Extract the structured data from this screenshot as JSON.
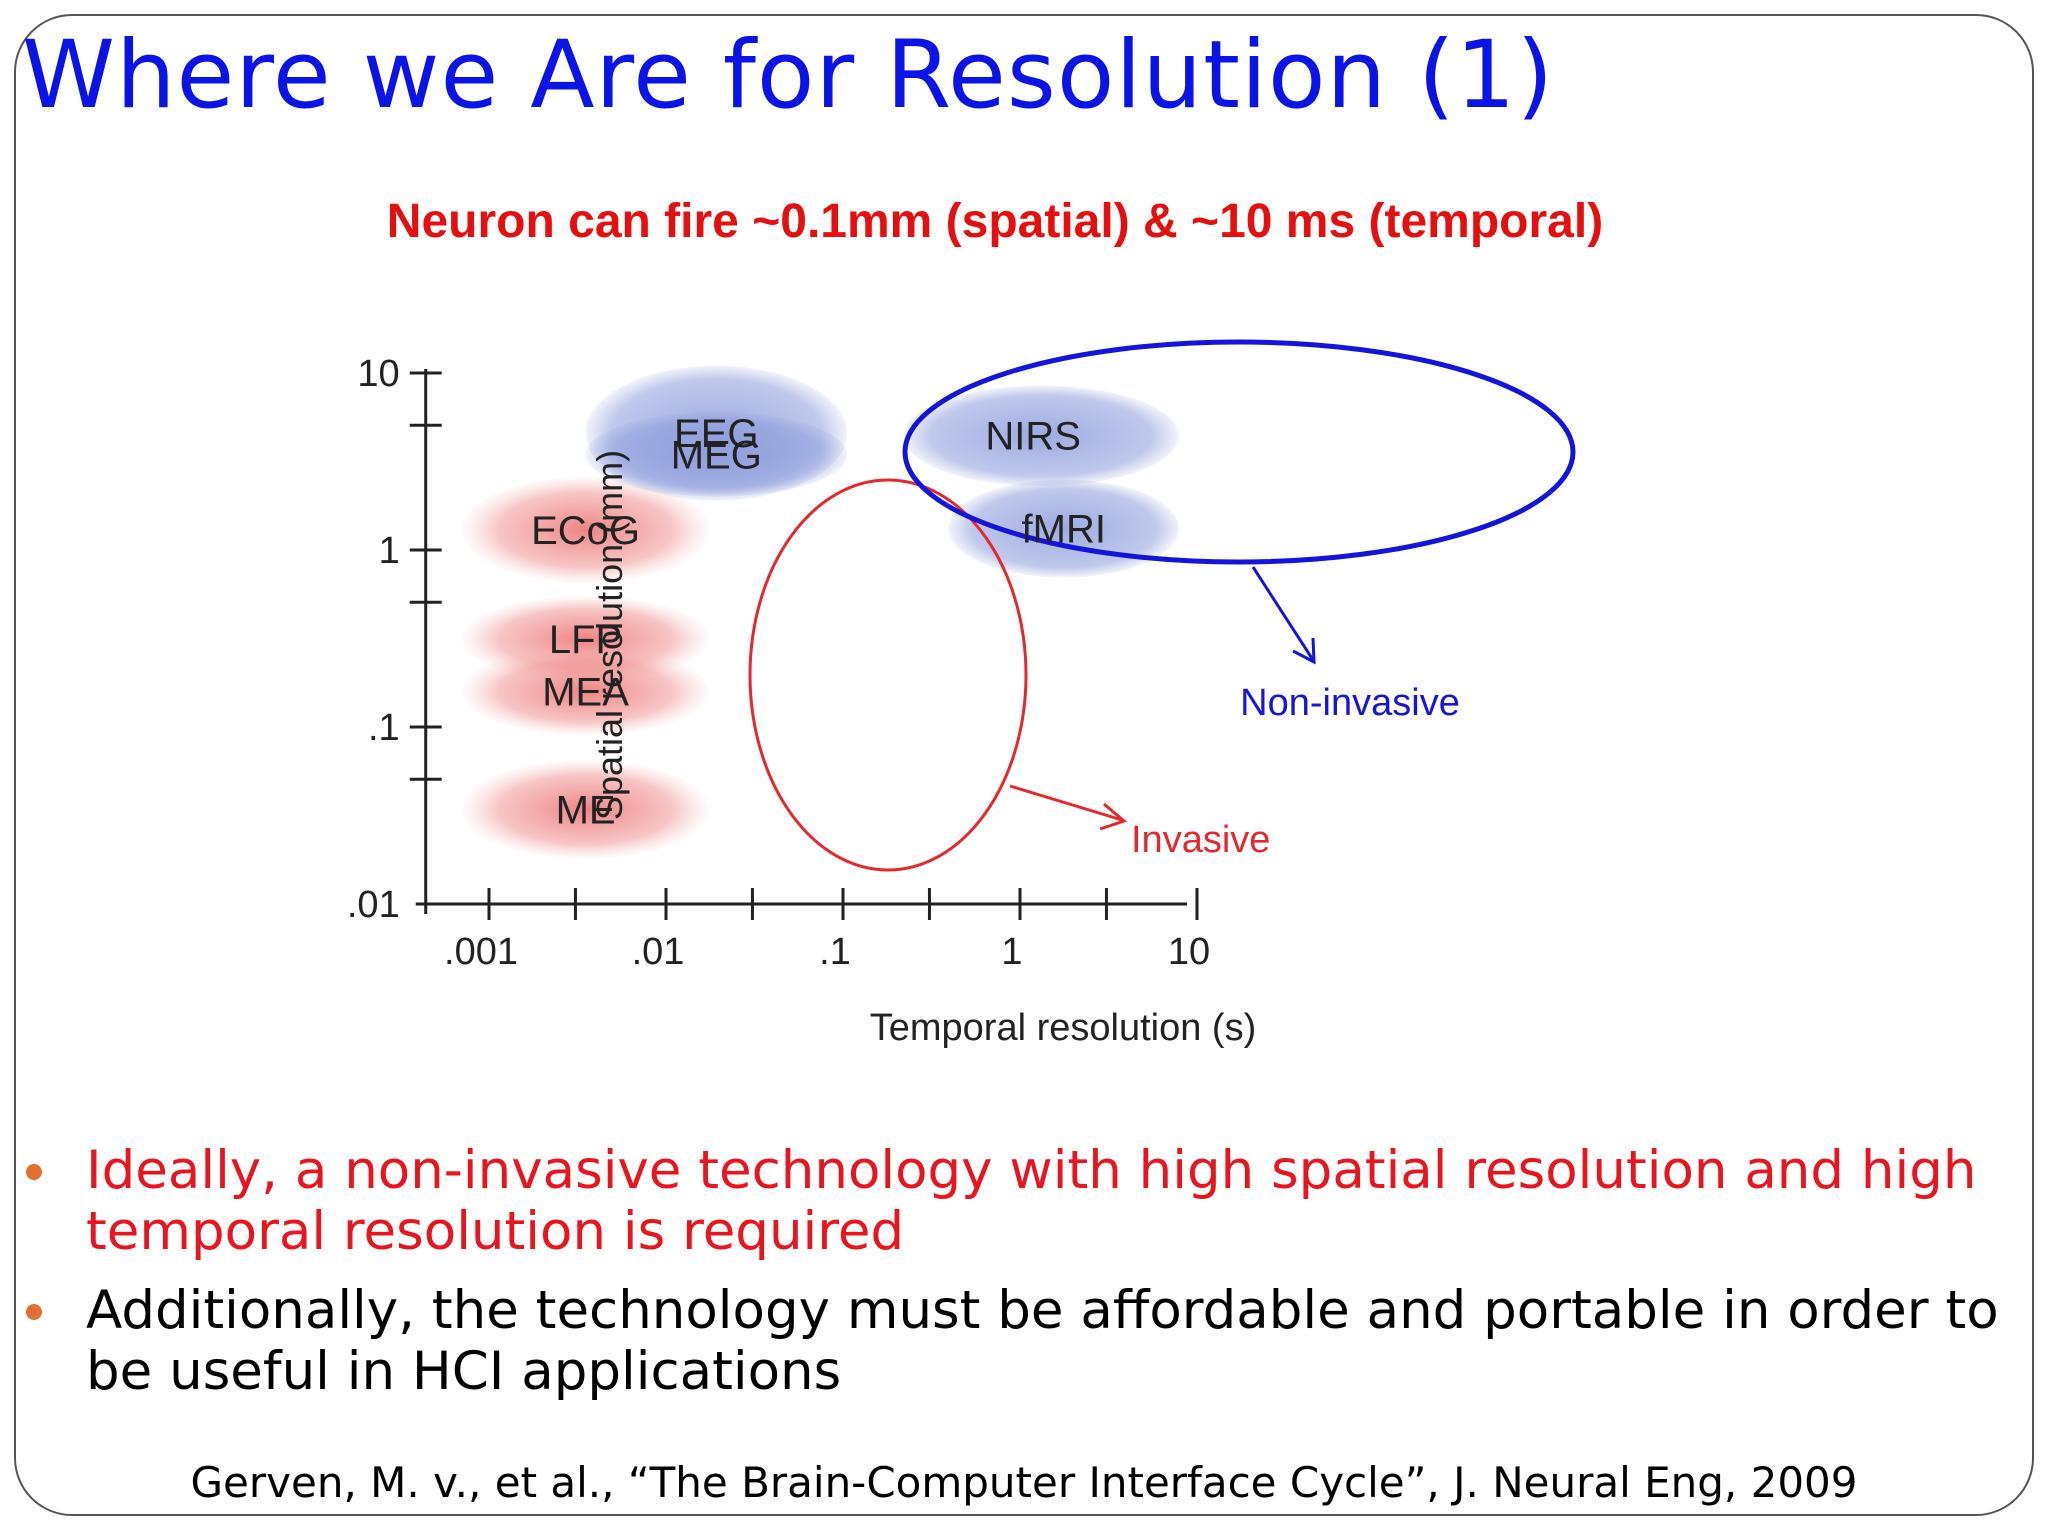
{
  "slide": {
    "title": "Where we Are for Resolution (1)",
    "subtitle": "Neuron can fire ~0.1mm (spatial) & ~10 ms (temporal)",
    "citation": "Gerven, M. v., et al., “The Brain-Computer Interface Cycle”, J. Neural Eng, 2009"
  },
  "bullets": [
    {
      "text": "Ideally, a non-invasive technology with high spatial resolution and high temporal resolution is required",
      "color": "#e8141e"
    },
    {
      "text": "Additionally, the technology must be affordable and portable in order to be useful in HCI applications",
      "color": "#000000"
    }
  ],
  "colors": {
    "title": "#0a14e6",
    "subtitle": "#e60f0f",
    "bullet_marker": "#e07034",
    "invasive": "#e6282d",
    "non_invasive": "#1414dc",
    "blob_blue": "#8c9cdc",
    "blob_red": "#eb6e6e"
  },
  "chart_data": {
    "type": "diagram",
    "xlabel": "Temporal resolution (s)",
    "ylabel": "Spatial resolution (mm)",
    "x_scale": "log",
    "y_scale": "log",
    "x_ticks": [
      ".001",
      ".01",
      ".1",
      "1",
      "10"
    ],
    "y_ticks": [
      "10",
      "1",
      ".1",
      ".01"
    ],
    "xlim": [
      0.0005,
      10
    ],
    "ylim": [
      0.01,
      10
    ],
    "regions": [
      {
        "label": "EEG",
        "group": "non-invasive",
        "x_range": [
          0.004,
          0.12
        ],
        "y_range": [
          1.9,
          11
        ]
      },
      {
        "label": "MEG",
        "group": "non-invasive",
        "x_range": [
          0.004,
          0.12
        ],
        "y_range": [
          2.0,
          6.0
        ]
      },
      {
        "label": "NIRS",
        "group": "non-invasive",
        "x_range": [
          0.25,
          9
        ],
        "y_range": [
          2.3,
          8.5
        ]
      },
      {
        "label": "fMRI",
        "group": "non-invasive",
        "x_range": [
          0.45,
          9
        ],
        "y_range": [
          0.7,
          2.5
        ]
      },
      {
        "label": "ECoG",
        "group": "invasive",
        "x_range": [
          0.0008,
          0.02
        ],
        "y_range": [
          0.65,
          2.6
        ]
      },
      {
        "label": "LFP",
        "group": "invasive",
        "x_range": [
          0.0008,
          0.02
        ],
        "y_range": [
          0.18,
          0.55
        ]
      },
      {
        "label": "MEA",
        "group": "invasive",
        "x_range": [
          0.0008,
          0.02
        ],
        "y_range": [
          0.09,
          0.28
        ]
      },
      {
        "label": "ME",
        "group": "invasive",
        "x_range": [
          0.0008,
          0.02
        ],
        "y_range": [
          0.018,
          0.065
        ]
      }
    ],
    "annotations": [
      {
        "label": "Non-invasive",
        "group": "non-invasive"
      },
      {
        "label": "Invasive",
        "group": "invasive"
      }
    ]
  }
}
